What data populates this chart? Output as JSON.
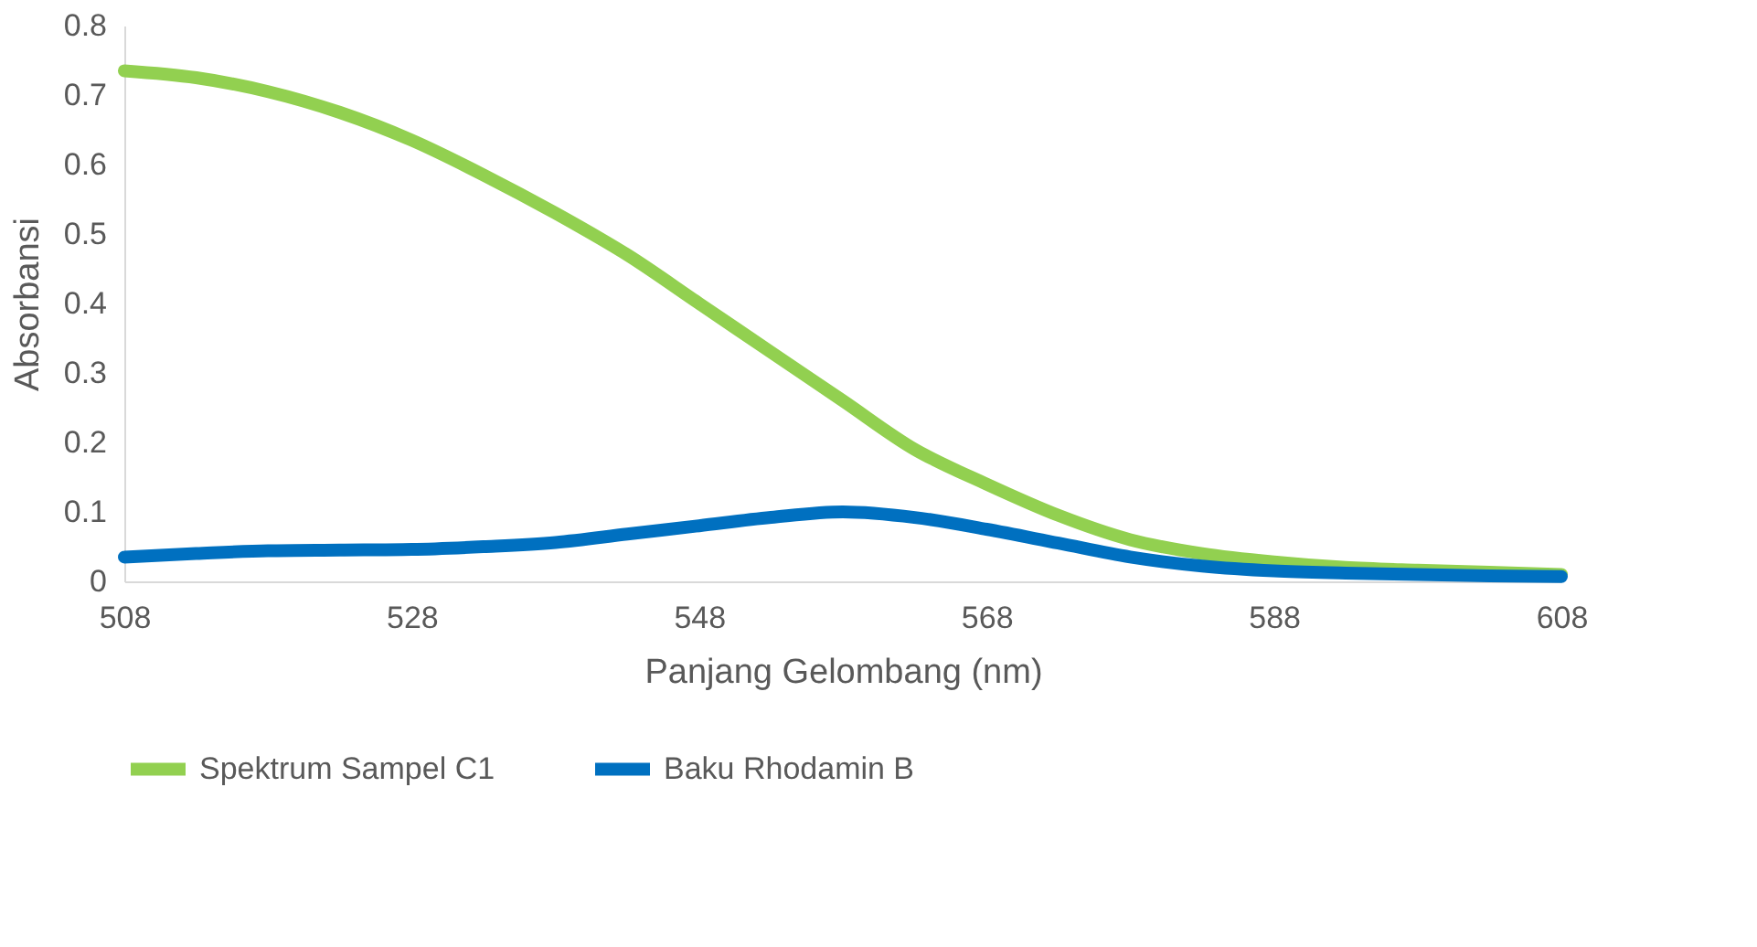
{
  "chart_data": {
    "type": "line",
    "xlabel": "Panjang Gelombang (nm)",
    "ylabel": "Absorbansi",
    "x": [
      508,
      513,
      518,
      523,
      528,
      533,
      538,
      543,
      548,
      553,
      558,
      563,
      568,
      573,
      578,
      583,
      588,
      593,
      598,
      603,
      608
    ],
    "series": [
      {
        "name": "Spektrum Sampel C1",
        "color": "#92d050",
        "values": [
          0.735,
          0.725,
          0.705,
          0.675,
          0.635,
          0.585,
          0.53,
          0.47,
          0.4,
          0.33,
          0.26,
          0.19,
          0.14,
          0.095,
          0.06,
          0.04,
          0.028,
          0.02,
          0.016,
          0.013,
          0.01
        ]
      },
      {
        "name": "Baku Rhodamin B",
        "color": "#0070c0",
        "values": [
          0.035,
          0.04,
          0.044,
          0.045,
          0.046,
          0.05,
          0.056,
          0.068,
          0.08,
          0.092,
          0.1,
          0.092,
          0.075,
          0.055,
          0.035,
          0.022,
          0.015,
          0.012,
          0.01,
          0.008,
          0.007
        ]
      }
    ],
    "xlim": [
      508,
      608
    ],
    "xticks": [
      508,
      528,
      548,
      568,
      588,
      608
    ],
    "ylim": [
      0,
      0.8
    ],
    "yticks": [
      0,
      0.1,
      0.2,
      0.3,
      0.4,
      0.5,
      0.6,
      0.7,
      0.8
    ],
    "grid": false,
    "legend": "bottom",
    "line_style": "solid",
    "marker": "none"
  }
}
